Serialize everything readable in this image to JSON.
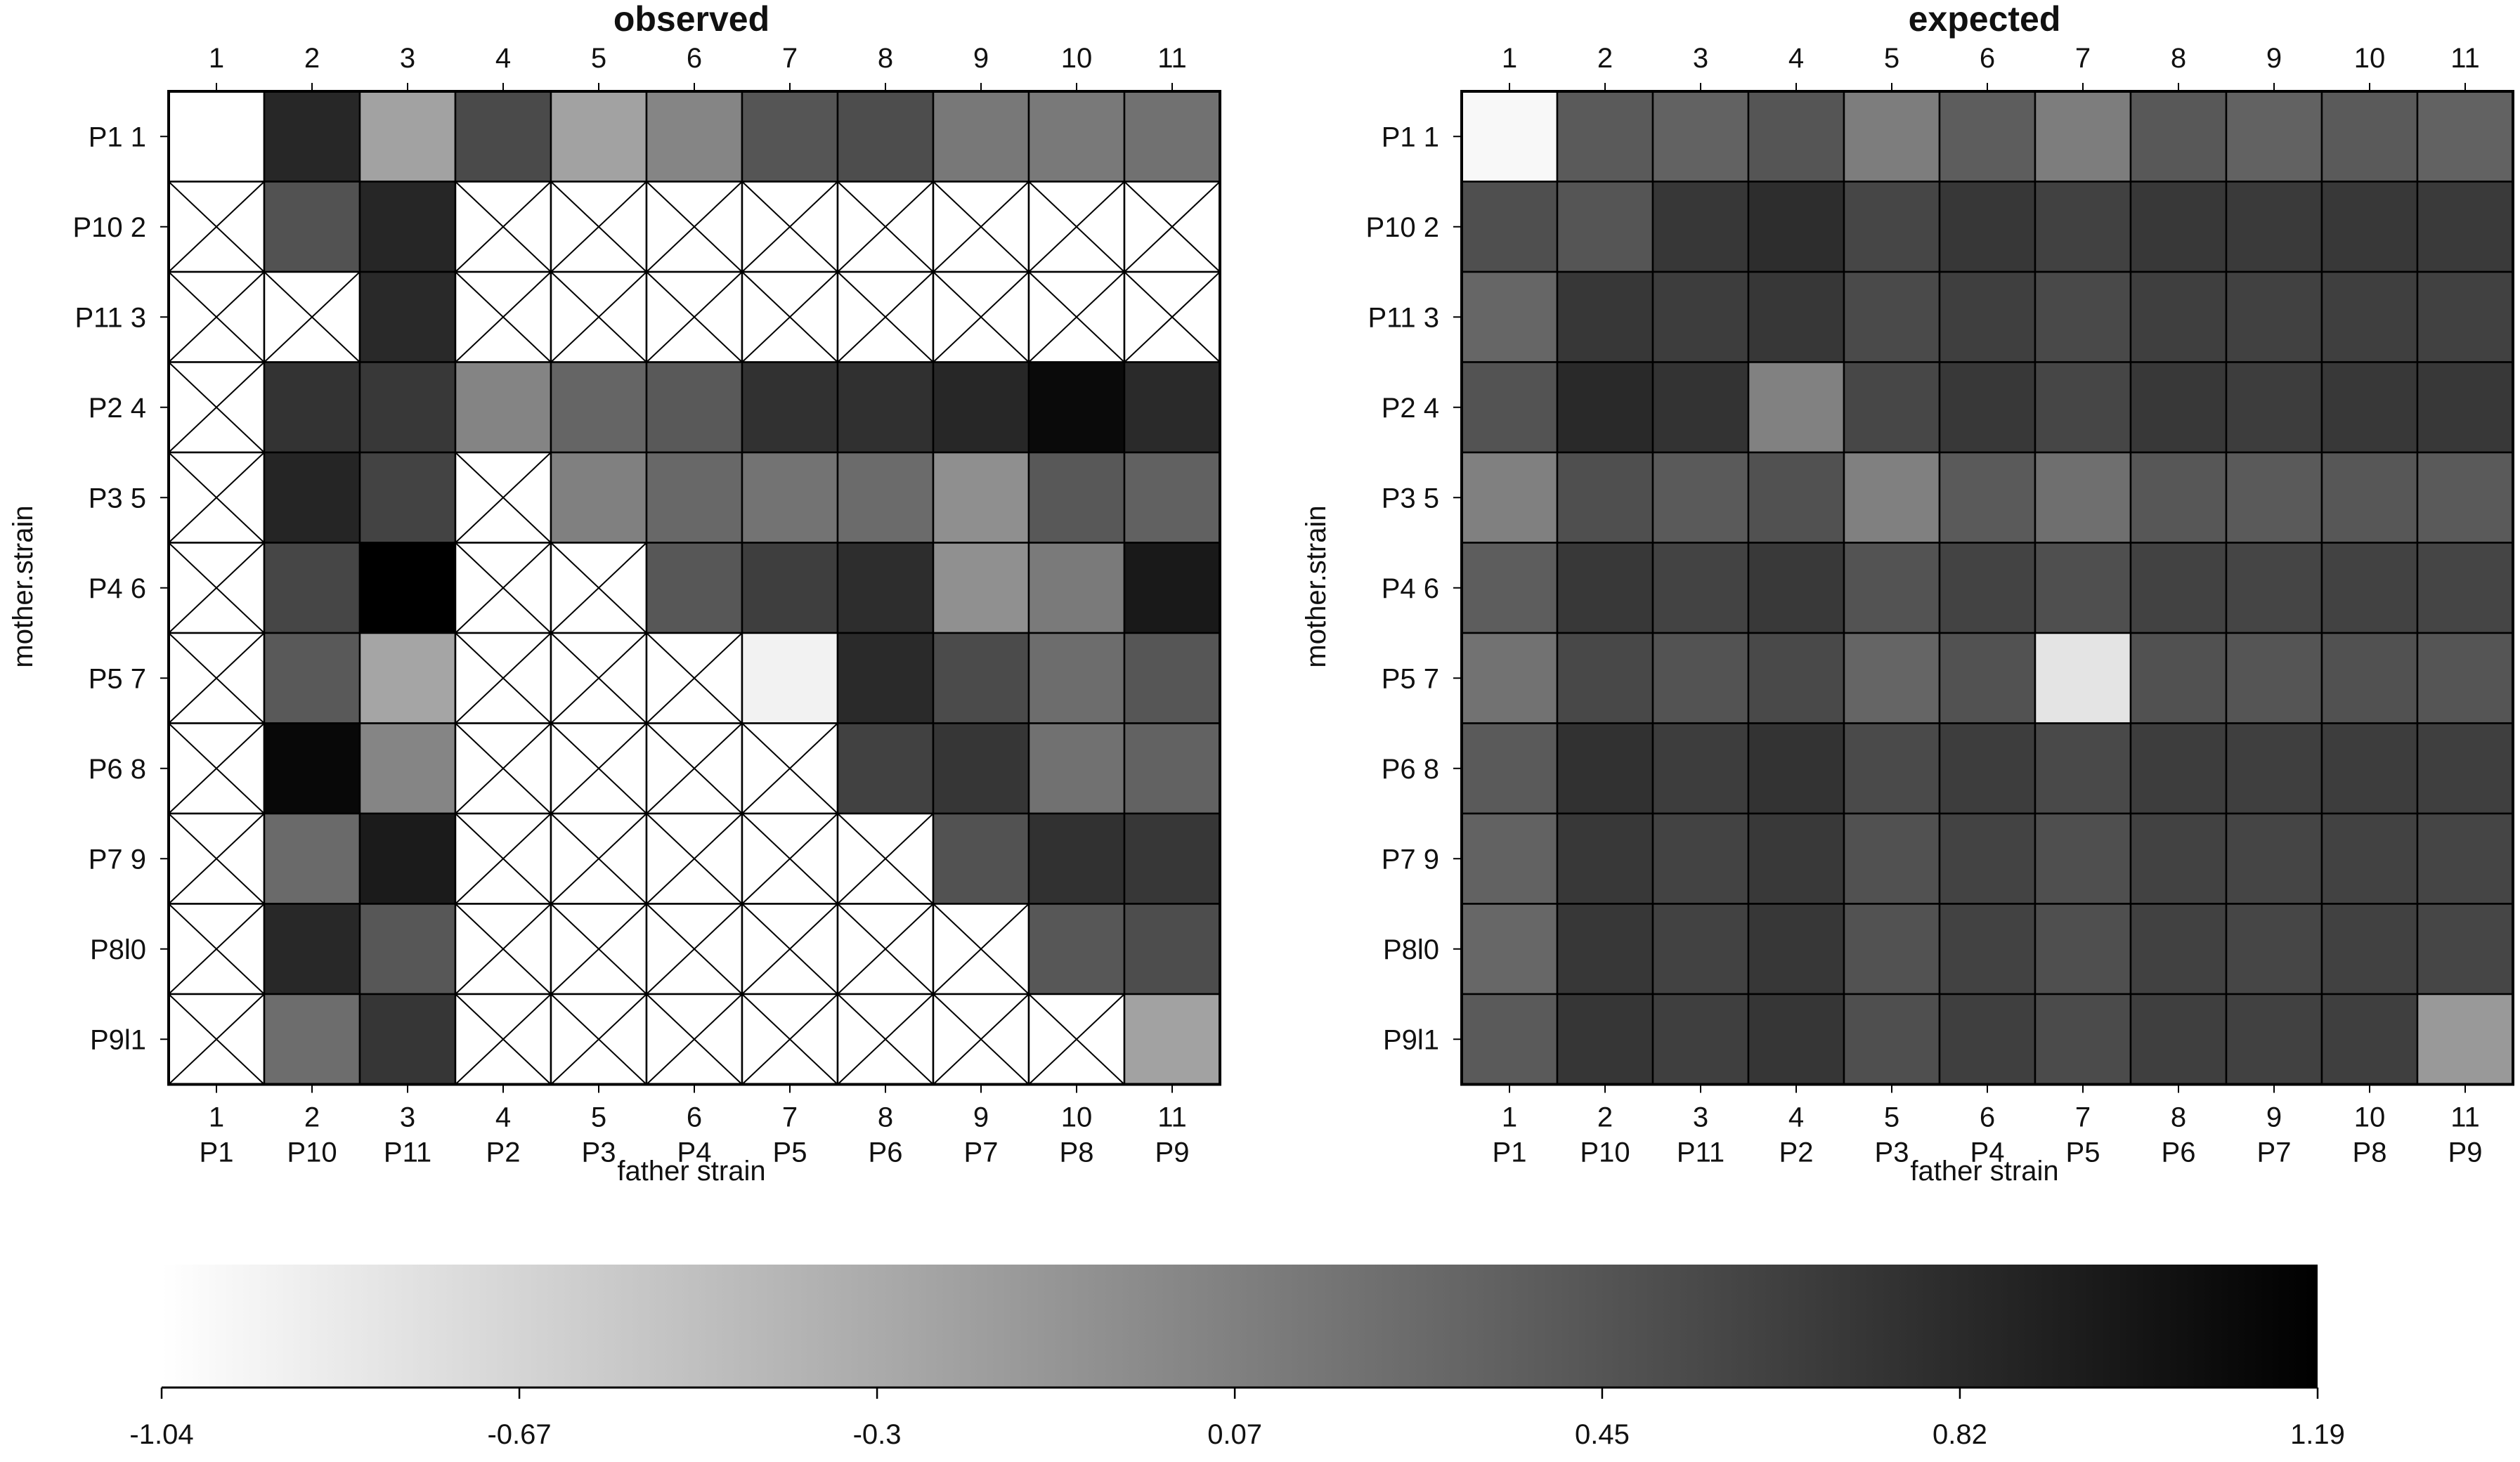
{
  "chart_data": {
    "type": "heatmap",
    "rows": [
      "P1 1",
      "P10 2",
      "P11 3",
      "P2 4",
      "P3 5",
      "P4 6",
      "P5 7",
      "P6 8",
      "P7 9",
      "P8l0",
      "P9l1"
    ],
    "col_numbers": [
      "1",
      "2",
      "3",
      "4",
      "5",
      "6",
      "7",
      "8",
      "9",
      "10",
      "11"
    ],
    "col_strains": [
      "P1",
      "P10",
      "P11",
      "P2",
      "P3",
      "P4",
      "P5",
      "P6",
      "P7",
      "P8",
      "P9"
    ],
    "xlabel": "father strain",
    "ylabel": "mother.strain",
    "colorscale": {
      "min": -1.04,
      "max": 1.19,
      "low_color": "#ffffff",
      "high_color": "#000000",
      "tick_labels": [
        "-1.04",
        "-0.67",
        "-0.3",
        "0.07",
        "0.45",
        "0.82",
        "1.19"
      ]
    },
    "panels": [
      {
        "title": "observed",
        "values": [
          [
            -1.04,
            0.85,
            -0.23,
            0.54,
            -0.23,
            0.03,
            0.45,
            0.52,
            0.14,
            0.13,
            0.2
          ],
          [
            null,
            0.47,
            0.86,
            null,
            null,
            null,
            null,
            null,
            null,
            null,
            null
          ],
          [
            null,
            null,
            0.83,
            null,
            null,
            null,
            null,
            null,
            null,
            null,
            null
          ],
          [
            null,
            0.74,
            0.7,
            0.04,
            0.31,
            0.41,
            0.76,
            0.77,
            0.85,
            1.1,
            0.82
          ],
          [
            null,
            0.87,
            0.6,
            null,
            0.07,
            0.28,
            0.18,
            0.25,
            -0.06,
            0.42,
            0.34
          ],
          [
            null,
            0.58,
            1.19,
            null,
            null,
            0.43,
            0.65,
            0.8,
            -0.07,
            0.12,
            0.97
          ],
          [
            null,
            0.41,
            -0.25,
            null,
            null,
            null,
            -0.93,
            0.82,
            0.53,
            0.24,
            0.44
          ],
          [
            null,
            1.12,
            0.03,
            null,
            null,
            null,
            null,
            0.62,
            0.72,
            0.2,
            0.33
          ],
          [
            null,
            0.26,
            0.95,
            null,
            null,
            null,
            null,
            null,
            0.47,
            0.76,
            0.71
          ],
          [
            null,
            0.84,
            0.43,
            null,
            null,
            null,
            null,
            null,
            null,
            0.43,
            0.52
          ],
          [
            null,
            0.24,
            0.72,
            null,
            null,
            null,
            null,
            null,
            null,
            null,
            -0.23
          ]
        ]
      },
      {
        "title": "expected",
        "values": [
          [
            -0.98,
            0.4,
            0.33,
            0.45,
            0.1,
            0.38,
            0.1,
            0.42,
            0.33,
            0.4,
            0.33
          ],
          [
            0.5,
            0.45,
            0.71,
            0.8,
            0.58,
            0.71,
            0.62,
            0.7,
            0.68,
            0.7,
            0.68
          ],
          [
            0.3,
            0.71,
            0.66,
            0.71,
            0.54,
            0.64,
            0.55,
            0.64,
            0.62,
            0.64,
            0.62
          ],
          [
            0.46,
            0.83,
            0.74,
            0.06,
            0.57,
            0.7,
            0.58,
            0.7,
            0.66,
            0.7,
            0.7
          ],
          [
            0.07,
            0.5,
            0.4,
            0.48,
            0.07,
            0.4,
            0.22,
            0.43,
            0.4,
            0.43,
            0.4
          ],
          [
            0.38,
            0.7,
            0.6,
            0.69,
            0.46,
            0.6,
            0.5,
            0.61,
            0.59,
            0.61,
            0.59
          ],
          [
            0.19,
            0.56,
            0.46,
            0.55,
            0.31,
            0.47,
            -0.8,
            0.48,
            0.45,
            0.48,
            0.45
          ],
          [
            0.4,
            0.76,
            0.66,
            0.74,
            0.54,
            0.66,
            0.55,
            0.66,
            0.64,
            0.66,
            0.64
          ],
          [
            0.33,
            0.7,
            0.6,
            0.69,
            0.48,
            0.6,
            0.5,
            0.61,
            0.59,
            0.61,
            0.59
          ],
          [
            0.29,
            0.71,
            0.61,
            0.71,
            0.47,
            0.61,
            0.5,
            0.62,
            0.58,
            0.62,
            0.58
          ],
          [
            0.4,
            0.72,
            0.64,
            0.72,
            0.5,
            0.64,
            0.53,
            0.64,
            0.62,
            0.64,
            -0.15
          ]
        ]
      }
    ]
  }
}
